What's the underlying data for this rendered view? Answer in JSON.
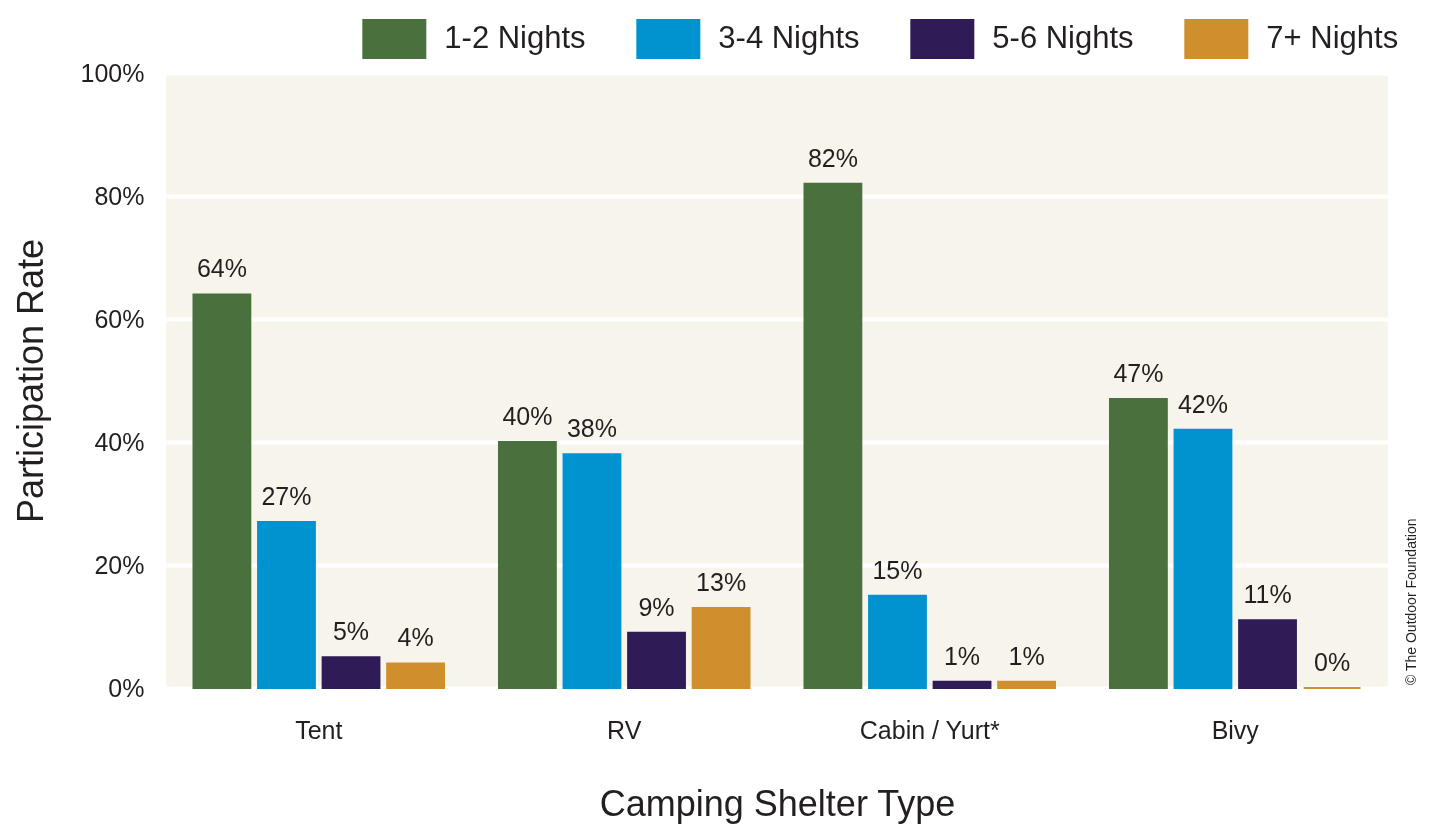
{
  "chart_data": {
    "type": "bar",
    "xlabel": "Camping Shelter Type",
    "ylabel": "Participation Rate",
    "categories": [
      "Tent",
      "RV",
      "Cabin / Yurt*",
      "Bivy"
    ],
    "series": [
      {
        "name": "1-2 Nights",
        "color": "#4a713d",
        "values": [
          64,
          40,
          82,
          47
        ],
        "value_labels": [
          "64%",
          "40%",
          "82%",
          "47%"
        ]
      },
      {
        "name": "3-4 Nights",
        "color": "#0093d0",
        "values": [
          27,
          38,
          15,
          42
        ],
        "value_labels": [
          "27%",
          "38%",
          "15%",
          "42%"
        ]
      },
      {
        "name": "5-6 Nights",
        "color": "#2f1b55",
        "values": [
          5,
          9,
          1,
          11
        ],
        "value_labels": [
          "5%",
          "9%",
          "1%",
          "11%"
        ]
      },
      {
        "name": "7+ Nights",
        "color": "#cf8f2d",
        "values": [
          4,
          13,
          1,
          0
        ],
        "value_labels": [
          "4%",
          "13%",
          "1%",
          "0%"
        ]
      }
    ],
    "ylim": [
      0,
      100
    ],
    "yticks": [
      {
        "value": 0,
        "label": "0%"
      },
      {
        "value": 20,
        "label": "20%"
      },
      {
        "value": 40,
        "label": "40%"
      },
      {
        "value": 60,
        "label": "60%"
      },
      {
        "value": 80,
        "label": "80%"
      },
      {
        "value": 100,
        "label": "100%"
      }
    ],
    "grid": "y",
    "legend": "top right",
    "annotations": [
      "© The Outdoor Foundation"
    ]
  }
}
